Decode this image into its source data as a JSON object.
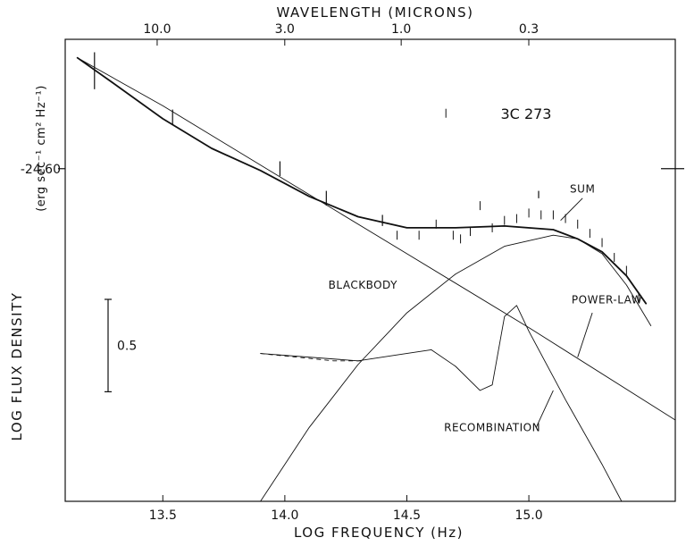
{
  "chart_data": {
    "type": "line",
    "title": "3C 273",
    "xlabel": "LOG FREQUENCY (Hz)",
    "ylabel_main": "LOG FLUX DENSITY",
    "ylabel_units": "(erg sec⁻¹ cm² Hz⁻¹)",
    "top_axis_label": "WAVELENGTH (MICRONS)",
    "xlim": [
      13.1,
      15.6
    ],
    "ylim": [
      -26.4,
      -23.9
    ],
    "x_ticks": [
      {
        "value": 13.5,
        "label": "13.5"
      },
      {
        "value": 14.0,
        "label": "14.0"
      },
      {
        "value": 14.5,
        "label": "14.5"
      },
      {
        "value": 15.0,
        "label": "15.0"
      }
    ],
    "top_ticks": [
      {
        "value": 10.0,
        "label": "10.0"
      },
      {
        "value": 3.0,
        "label": "3.0"
      },
      {
        "value": 1.0,
        "label": "1.0"
      },
      {
        "value": 0.3,
        "label": "0.3"
      }
    ],
    "reference_level": {
      "value": -24.6,
      "label": "-24.60"
    },
    "scale_bar": {
      "value": 0.5,
      "label": "0.5"
    },
    "series": [
      {
        "name": "SUM",
        "style": "thick",
        "x": [
          13.15,
          13.3,
          13.5,
          13.7,
          13.9,
          14.1,
          14.3,
          14.5,
          14.7,
          14.9,
          15.1,
          15.2,
          15.3,
          15.4,
          15.48
        ],
        "y": [
          -24.0,
          -24.14,
          -24.33,
          -24.49,
          -24.61,
          -24.75,
          -24.86,
          -24.92,
          -24.92,
          -24.91,
          -24.93,
          -24.98,
          -25.05,
          -25.18,
          -25.33
        ]
      },
      {
        "name": "POWER-LAW",
        "style": "thin",
        "x": [
          13.15,
          13.5,
          14.0,
          14.5,
          15.0,
          15.6
        ],
        "y": [
          -24.0,
          -24.26,
          -24.66,
          -25.06,
          -25.46,
          -25.96
        ]
      },
      {
        "name": "BLACKBODY",
        "style": "thin",
        "x": [
          13.9,
          14.1,
          14.3,
          14.5,
          14.7,
          14.9,
          15.1,
          15.2,
          15.3,
          15.4,
          15.5
        ],
        "y": [
          -26.4,
          -26.0,
          -25.66,
          -25.38,
          -25.17,
          -25.02,
          -24.96,
          -24.98,
          -25.06,
          -25.23,
          -25.45
        ]
      },
      {
        "name": "RECOMBINATION",
        "style": "thin",
        "x": [
          13.9,
          14.3,
          14.45,
          14.6,
          14.7,
          14.8,
          14.85,
          14.9,
          14.95,
          15.0,
          15.15,
          15.3,
          15.38
        ],
        "y": [
          -25.6,
          -25.64,
          -25.61,
          -25.58,
          -25.67,
          -25.8,
          -25.77,
          -25.4,
          -25.34,
          -25.48,
          -25.85,
          -26.2,
          -26.4
        ]
      }
    ],
    "dashed_segment": {
      "x": [
        13.9,
        14.05,
        14.2,
        14.32
      ],
      "y": [
        -25.6,
        -25.62,
        -25.64,
        -25.64
      ]
    },
    "spectrum_points": {
      "x": [
        14.46,
        14.55,
        14.62,
        14.66,
        14.69,
        14.72,
        14.76,
        14.8,
        14.85,
        14.9,
        14.95,
        15.0,
        15.05,
        15.1,
        15.15,
        15.2,
        15.25,
        15.3,
        15.35,
        15.4,
        15.45
      ],
      "y": [
        -24.96,
        -24.96,
        -24.9,
        -24.3,
        -24.96,
        -24.98,
        -24.94,
        -24.8,
        -24.92,
        -24.88,
        -24.87,
        -24.84,
        -24.85,
        -24.85,
        -24.87,
        -24.9,
        -24.95,
        -25.0,
        -25.08,
        -25.15,
        -25.3
      ]
    },
    "photometry_points": [
      {
        "x": 13.22,
        "y": -24.07,
        "err": 0.1
      },
      {
        "x": 13.54,
        "y": -24.32,
        "err": 0.04
      },
      {
        "x": 13.98,
        "y": -24.6,
        "err": 0.04
      },
      {
        "x": 14.17,
        "y": -24.76,
        "err": 0.04
      },
      {
        "x": 14.4,
        "y": -24.88,
        "err": 0.03
      },
      {
        "x": 15.04,
        "y": -24.74,
        "err": 0.02
      }
    ],
    "annotations": [
      {
        "text": "SUM",
        "x": 15.22,
        "y": -24.73
      },
      {
        "text": "BLACKBODY",
        "x": 14.32,
        "y": -25.25
      },
      {
        "text": "POWER-LAW",
        "x": 15.32,
        "y": -25.33
      },
      {
        "text": "RECOMBINATION",
        "x": 14.85,
        "y": -26.02
      }
    ]
  }
}
